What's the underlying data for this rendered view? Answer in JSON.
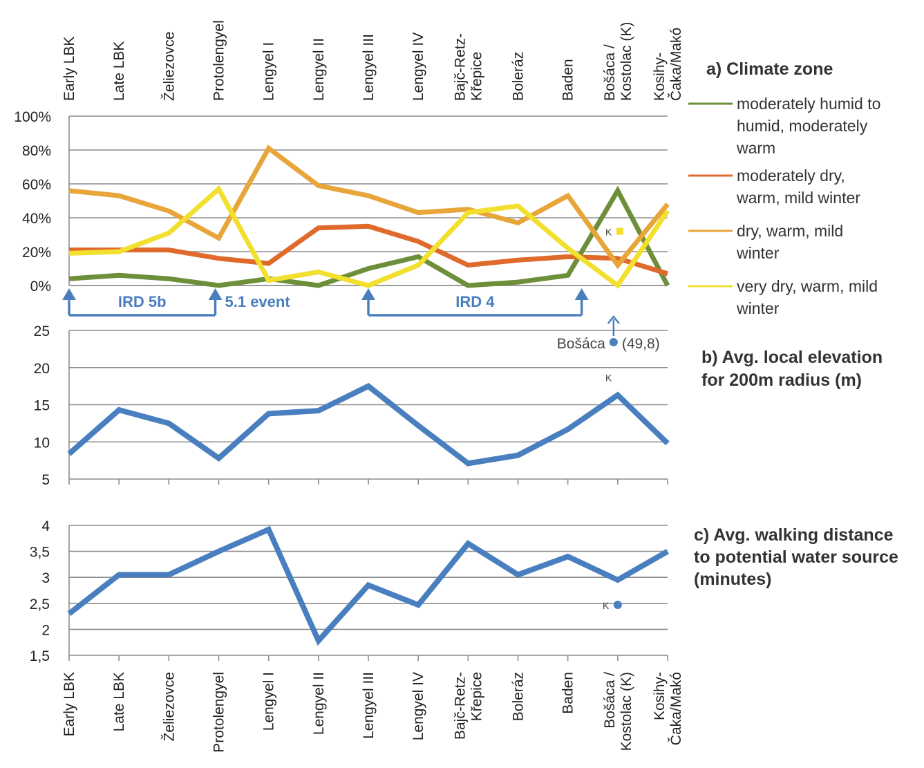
{
  "chart_data": [
    {
      "id": "a",
      "type": "line",
      "title": "a) Climate zone",
      "categories": [
        "Early LBK",
        "Late LBK",
        "Želiezovce",
        "Protolengyel",
        "Lengyel I",
        "Lengyel II",
        "Lengyel III",
        "Lengyel IV",
        "Bajč-Retz-Křepice",
        "Boleráz",
        "Baden",
        "Bošáca / Kostolac (K)",
        "Kosihy-Čaka/Makó"
      ],
      "y_ticks": [
        "0%",
        "20%",
        "40%",
        "60%",
        "80%",
        "100%"
      ],
      "ylim": [
        0,
        100
      ],
      "legend_position": "right",
      "grid": true,
      "series": [
        {
          "name": "moderately humid to humid, moderately warm",
          "color": "#6e8f3a",
          "values": [
            4,
            6,
            4,
            0,
            4,
            0,
            10,
            17,
            0,
            2,
            6,
            56,
            0
          ]
        },
        {
          "name": "moderately dry, warm, mild winter",
          "color": "#e06a2c",
          "values": [
            21,
            21,
            21,
            16,
            13,
            34,
            35,
            26,
            12,
            15,
            17,
            16,
            7
          ]
        },
        {
          "name": "dry, warm, mild winter",
          "color": "#e8a53a",
          "values": [
            56,
            53,
            44,
            28,
            81,
            59,
            53,
            43,
            45,
            37,
            53,
            12,
            48
          ]
        },
        {
          "name": "very dry, warm, mild winter",
          "color": "#f2df2e",
          "values": [
            19,
            20,
            31,
            57,
            3,
            8,
            0,
            12,
            43,
            47,
            22,
            0,
            44
          ]
        }
      ],
      "points": [
        {
          "label": "K",
          "category": "Bošáca / Kostolac (K)",
          "value": 32,
          "color": "#f2df2e"
        }
      ],
      "annotations": [
        {
          "label": "IRD 5b",
          "from": "Early LBK",
          "to": "Protolengyel"
        },
        {
          "label": "5.1 event",
          "at": "Protolengyel"
        },
        {
          "label": "IRD 4",
          "from": "Lengyel III",
          "to": "Baden"
        }
      ]
    },
    {
      "id": "b",
      "type": "line",
      "title": "b) Avg. local elevation for 200m radius (m)",
      "categories": [
        "Early LBK",
        "Late LBK",
        "Želiezovce",
        "Protolengyel",
        "Lengyel I",
        "Lengyel II",
        "Lengyel III",
        "Lengyel IV",
        "Bajč-Retz-Křepice",
        "Boleráz",
        "Baden",
        "Bošáca / Kostolac (K)",
        "Kosihy-Čaka/Makó"
      ],
      "y_ticks": [
        "5",
        "10",
        "15",
        "20",
        "25"
      ],
      "ylim": [
        5,
        25
      ],
      "grid": true,
      "series": [
        {
          "name": "",
          "color": "#4a7fbf",
          "values": [
            8.4,
            14.3,
            12.5,
            7.8,
            13.8,
            14.2,
            17.5,
            12.2,
            7.1,
            8.2,
            11.7,
            16.3,
            9.8
          ]
        }
      ],
      "points": [
        {
          "label": "K",
          "category": "Bošáca / Kostolac (K)",
          "value": 16.3
        },
        {
          "label": "Bošáca",
          "category": "Bošáca / Kostolac (K)",
          "value_text": "(49,8)"
        }
      ]
    },
    {
      "id": "c",
      "type": "line",
      "title": "c) Avg. walking distance to potential water source (minutes)",
      "categories": [
        "Early LBK",
        "Late LBK",
        "Želiezovce",
        "Protolengyel",
        "Lengyel I",
        "Lengyel II",
        "Lengyel III",
        "Lengyel IV",
        "Bajč-Retz-Křepice",
        "Boleráz",
        "Baden",
        "Bošáca / Kostolac (K)",
        "Kosihy-Čaka/Makó"
      ],
      "y_ticks": [
        "1,5",
        "2",
        "2,5",
        "3",
        "3,5",
        "4"
      ],
      "ylim": [
        1.5,
        4
      ],
      "grid": true,
      "series": [
        {
          "name": "",
          "color": "#4a7fbf",
          "values": [
            2.3,
            3.05,
            3.05,
            3.5,
            3.92,
            1.78,
            2.85,
            2.47,
            3.65,
            3.05,
            3.4,
            2.95,
            3.5
          ]
        }
      ],
      "points": [
        {
          "label": "K",
          "category": "Bošáca / Kostolac (K)",
          "value": 2.47,
          "color": "#4a7fbf"
        }
      ]
    }
  ]
}
